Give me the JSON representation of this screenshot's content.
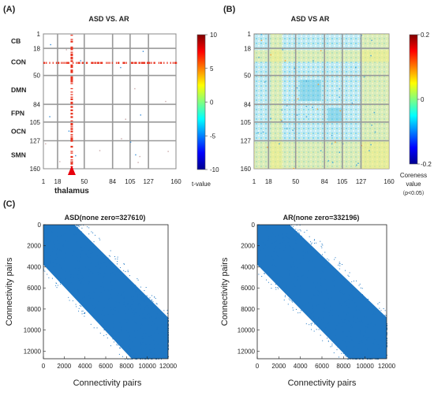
{
  "figure": {
    "panel_labels": [
      "(A)",
      "(B)",
      "(C)"
    ]
  },
  "chart_data": [
    {
      "type": "heatmap",
      "panel": "(A)",
      "title": "ASD VS. AR",
      "x_ticks": [
        "1",
        "18",
        "50",
        "84",
        "105",
        "127",
        "160"
      ],
      "y_ticks": [
        "1",
        "18",
        "50",
        "84",
        "105",
        "127",
        "160"
      ],
      "network_labels": [
        "CB",
        "CON",
        "DMN",
        "FPN",
        "OCN",
        "SMN"
      ],
      "network_boundaries": [
        1,
        18,
        50,
        84,
        105,
        127,
        160
      ],
      "highlight_index": 35,
      "annotation": "thalamus",
      "colorbar": {
        "label": "t-value",
        "ticks": [
          "10",
          "5",
          "0",
          "-5",
          "-10"
        ],
        "range": [
          -10,
          10
        ]
      },
      "colors": {
        "positive": "#e8321e",
        "negative": "#3a8fd8"
      }
    },
    {
      "type": "heatmap",
      "panel": "(B)",
      "title": "ASD VS AR",
      "x_ticks": [
        "1",
        "18",
        "50",
        "84",
        "105",
        "127",
        "160"
      ],
      "y_ticks": [
        "1",
        "18",
        "50",
        "84",
        "105",
        "127",
        "160"
      ],
      "network_boundaries": [
        1,
        18,
        50,
        84,
        105,
        127,
        160
      ],
      "colorbar": {
        "label_lines": [
          "Coreness",
          "value",
          "（p<0.05）"
        ],
        "ticks": [
          "0.2",
          "0",
          "-0.2"
        ],
        "range": [
          -0.2,
          0.2
        ]
      }
    },
    {
      "type": "scatter",
      "panel": "(C)",
      "title": "ASD(none zero=327610)",
      "xlabel": "Connectivity pairs",
      "ylabel": "Connectivity pairs",
      "x_ticks": [
        0,
        2000,
        4000,
        6000,
        8000,
        10000,
        12000
      ],
      "y_ticks": [
        0,
        2000,
        4000,
        6000,
        8000,
        10000,
        12000
      ],
      "xlim": [
        0,
        12000
      ],
      "ylim": [
        0,
        12720
      ],
      "nonzero_count": 327610,
      "color": "#1f77c4"
    },
    {
      "type": "scatter",
      "panel": "(C)",
      "title": "AR(none zero=332196)",
      "xlabel": "Connectivity pairs",
      "ylabel": "Connectivity pairs",
      "x_ticks": [
        0,
        2000,
        4000,
        6000,
        8000,
        10000,
        12000
      ],
      "y_ticks": [
        0,
        2000,
        4000,
        6000,
        8000,
        10000,
        12000
      ],
      "xlim": [
        0,
        12000
      ],
      "ylim": [
        0,
        12720
      ],
      "nonzero_count": 332196,
      "color": "#1f77c4"
    }
  ]
}
